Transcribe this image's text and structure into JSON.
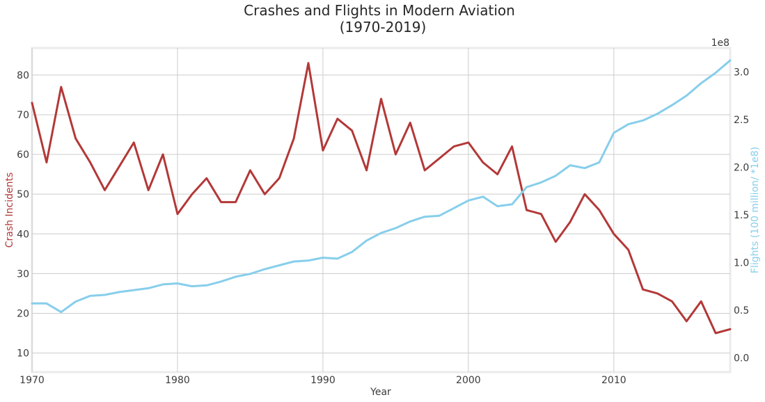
{
  "chart_data": {
    "type": "line",
    "title": "Crashes and Flights in Modern Aviation",
    "subtitle": "(1970-2019)",
    "xlabel": "Year",
    "ylabel_left": "Crash Incidents",
    "ylabel_right": "Flights (100 million/ *1e8)",
    "right_axis_offset_label": "1e8",
    "xlim": [
      1970,
      2018
    ],
    "ylim_left": [
      5.2,
      86.8
    ],
    "ylim_right": [
      -0.15,
      3.25
    ],
    "x_ticks": [
      1970,
      1980,
      1990,
      2000,
      2010
    ],
    "y_left_ticks": [
      10,
      20,
      30,
      40,
      50,
      60,
      70,
      80
    ],
    "y_right_ticks": [
      0.0,
      0.5,
      1.0,
      1.5,
      2.0,
      2.5,
      3.0
    ],
    "y_right_tick_labels": [
      "0.0",
      "0.5",
      "1.0",
      "1.5",
      "2.0",
      "2.5",
      "3.0"
    ],
    "grid": true,
    "x": [
      1970,
      1971,
      1972,
      1973,
      1974,
      1975,
      1976,
      1977,
      1978,
      1979,
      1980,
      1981,
      1982,
      1983,
      1984,
      1985,
      1986,
      1987,
      1988,
      1989,
      1990,
      1991,
      1992,
      1993,
      1994,
      1995,
      1996,
      1997,
      1998,
      1999,
      2000,
      2001,
      2002,
      2003,
      2004,
      2005,
      2006,
      2007,
      2008,
      2009,
      2010,
      2011,
      2012,
      2013,
      2014,
      2015,
      2016,
      2017,
      2018
    ],
    "series": [
      {
        "name": "Crash Incidents",
        "axis": "left",
        "color": "#b33838",
        "values": [
          73,
          58,
          77,
          64,
          58,
          51,
          57,
          63,
          51,
          60,
          45,
          50,
          54,
          48,
          48,
          56,
          50,
          54,
          64,
          83,
          61,
          69,
          66,
          56,
          74,
          60,
          68,
          56,
          59,
          62,
          63,
          58,
          55,
          62,
          46,
          45,
          38,
          43,
          50,
          46,
          40,
          36,
          26,
          25,
          23,
          18,
          23,
          15,
          16
        ]
      },
      {
        "name": "Flights (100 million/ *1e8)",
        "axis": "right",
        "color": "#87ceeb",
        "values": [
          0.57,
          0.57,
          0.48,
          0.59,
          0.65,
          0.66,
          0.69,
          0.71,
          0.73,
          0.77,
          0.78,
          0.75,
          0.76,
          0.8,
          0.85,
          0.88,
          0.93,
          0.97,
          1.01,
          1.02,
          1.05,
          1.04,
          1.11,
          1.23,
          1.31,
          1.36,
          1.43,
          1.48,
          1.49,
          1.57,
          1.65,
          1.69,
          1.59,
          1.61,
          1.79,
          1.84,
          1.91,
          2.02,
          1.99,
          2.05,
          2.36,
          2.45,
          2.49,
          2.56,
          2.65,
          2.75,
          2.88,
          2.99,
          3.12
        ]
      }
    ]
  }
}
